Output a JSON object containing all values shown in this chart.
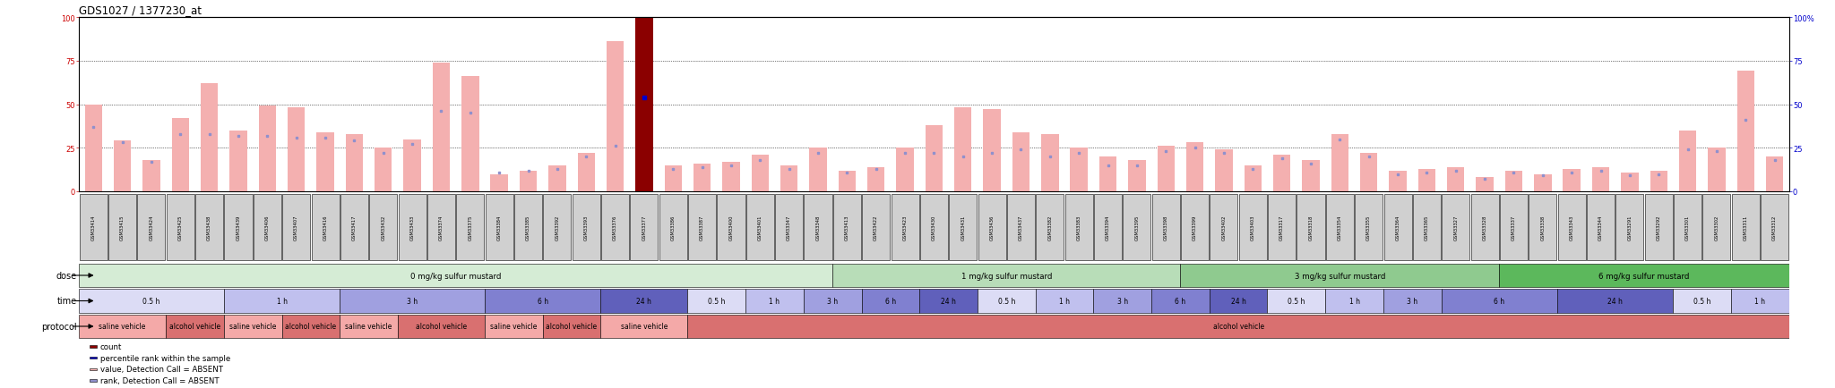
{
  "title": "GDS1027 / 1377230_at",
  "sample_ids": [
    "GSM33414",
    "GSM33415",
    "GSM33424",
    "GSM33425",
    "GSM33438",
    "GSM33439",
    "GSM33406",
    "GSM33407",
    "GSM33416",
    "GSM33417",
    "GSM33432",
    "GSM33433",
    "GSM33374",
    "GSM33375",
    "GSM33384",
    "GSM33385",
    "GSM33392",
    "GSM33393",
    "GSM33376",
    "GSM33377",
    "GSM33386",
    "GSM33387",
    "GSM33400",
    "GSM33401",
    "GSM33347",
    "GSM33348",
    "GSM33413",
    "GSM33422",
    "GSM33423",
    "GSM33430",
    "GSM33431",
    "GSM33436",
    "GSM33437",
    "GSM33382",
    "GSM33383",
    "GSM33394",
    "GSM33395",
    "GSM33398",
    "GSM33399",
    "GSM33402",
    "GSM33403",
    "GSM33317",
    "GSM33318",
    "GSM33354",
    "GSM33355",
    "GSM33364",
    "GSM33365",
    "GSM33327",
    "GSM33328",
    "GSM33337",
    "GSM33338",
    "GSM33343",
    "GSM33344",
    "GSM33291",
    "GSM33292",
    "GSM33301",
    "GSM33302",
    "GSM33311",
    "GSM33312"
  ],
  "bar_heights": [
    50,
    29,
    18,
    42,
    62,
    35,
    49,
    48,
    34,
    33,
    25,
    30,
    74,
    66,
    10,
    12,
    15,
    22,
    86,
    100,
    15,
    16,
    17,
    21,
    15,
    25,
    12,
    14,
    25,
    38,
    48,
    47,
    34,
    33,
    25,
    20,
    18,
    26,
    28,
    24,
    15,
    21,
    18,
    33,
    22,
    12,
    13,
    14,
    8,
    12,
    10,
    13,
    14,
    11,
    12,
    35,
    25,
    69,
    20
  ],
  "rank_heights": [
    37,
    28,
    17,
    33,
    33,
    32,
    32,
    31,
    31,
    29,
    22,
    27,
    46,
    45,
    11,
    12,
    13,
    20,
    26,
    54,
    13,
    14,
    15,
    18,
    13,
    22,
    11,
    13,
    22,
    22,
    20,
    22,
    24,
    20,
    22,
    15,
    15,
    23,
    25,
    22,
    13,
    19,
    16,
    30,
    20,
    10,
    11,
    12,
    7,
    11,
    9,
    11,
    12,
    9,
    10,
    24,
    23,
    41,
    18
  ],
  "special_indices": [
    19
  ],
  "dose_groups": [
    {
      "label": "0 mg/kg sulfur mustard",
      "start": 0,
      "end": 26,
      "color": "#d5ecd5"
    },
    {
      "label": "1 mg/kg sulfur mustard",
      "start": 26,
      "end": 38,
      "color": "#b8ddb8"
    },
    {
      "label": "3 mg/kg sulfur mustard",
      "start": 38,
      "end": 49,
      "color": "#8fca8f"
    },
    {
      "label": "6 mg/kg sulfur mustard",
      "start": 49,
      "end": 59,
      "color": "#5cb85c"
    }
  ],
  "time_groups": [
    {
      "label": "0.5 h",
      "start": 0,
      "end": 5,
      "shade": 0
    },
    {
      "label": "1 h",
      "start": 5,
      "end": 9,
      "shade": 1
    },
    {
      "label": "3 h",
      "start": 9,
      "end": 14,
      "shade": 2
    },
    {
      "label": "6 h",
      "start": 14,
      "end": 18,
      "shade": 3
    },
    {
      "label": "24 h",
      "start": 18,
      "end": 21,
      "shade": 4
    },
    {
      "label": "0.5 h",
      "start": 21,
      "end": 23,
      "shade": 0
    },
    {
      "label": "1 h",
      "start": 23,
      "end": 25,
      "shade": 1
    },
    {
      "label": "3 h",
      "start": 25,
      "end": 27,
      "shade": 2
    },
    {
      "label": "6 h",
      "start": 27,
      "end": 29,
      "shade": 3
    },
    {
      "label": "24 h",
      "start": 29,
      "end": 31,
      "shade": 4
    },
    {
      "label": "0.5 h",
      "start": 31,
      "end": 33,
      "shade": 0
    },
    {
      "label": "1 h",
      "start": 33,
      "end": 35,
      "shade": 1
    },
    {
      "label": "3 h",
      "start": 35,
      "end": 37,
      "shade": 2
    },
    {
      "label": "6 h",
      "start": 37,
      "end": 39,
      "shade": 3
    },
    {
      "label": "24 h",
      "start": 39,
      "end": 41,
      "shade": 4
    },
    {
      "label": "0.5 h",
      "start": 41,
      "end": 43,
      "shade": 0
    },
    {
      "label": "1 h",
      "start": 43,
      "end": 45,
      "shade": 1
    },
    {
      "label": "3 h",
      "start": 45,
      "end": 47,
      "shade": 2
    },
    {
      "label": "6 h",
      "start": 47,
      "end": 51,
      "shade": 3
    },
    {
      "label": "24 h",
      "start": 51,
      "end": 55,
      "shade": 4
    },
    {
      "label": "0.5 h",
      "start": 55,
      "end": 57,
      "shade": 0
    },
    {
      "label": "1 h",
      "start": 57,
      "end": 59,
      "shade": 1
    }
  ],
  "protocol_groups": [
    {
      "label": "saline vehicle",
      "start": 0,
      "end": 3,
      "color": "#f4a9a8"
    },
    {
      "label": "alcohol vehicle",
      "start": 3,
      "end": 5,
      "color": "#d97070"
    },
    {
      "label": "saline vehicle",
      "start": 5,
      "end": 7,
      "color": "#f4a9a8"
    },
    {
      "label": "alcohol vehicle",
      "start": 7,
      "end": 9,
      "color": "#d97070"
    },
    {
      "label": "saline vehicle",
      "start": 9,
      "end": 11,
      "color": "#f4a9a8"
    },
    {
      "label": "alcohol vehicle",
      "start": 11,
      "end": 14,
      "color": "#d97070"
    },
    {
      "label": "saline vehicle",
      "start": 14,
      "end": 16,
      "color": "#f4a9a8"
    },
    {
      "label": "alcohol vehicle",
      "start": 16,
      "end": 18,
      "color": "#d97070"
    },
    {
      "label": "saline vehicle",
      "start": 18,
      "end": 21,
      "color": "#f4a9a8"
    },
    {
      "label": "alcohol vehicle",
      "start": 21,
      "end": 59,
      "color": "#d97070"
    }
  ],
  "time_shades": [
    "#dcdcf5",
    "#c0c0ee",
    "#a0a0e0",
    "#8080d0",
    "#6060bb"
  ],
  "bar_color": "#f4b0b0",
  "rank_color": "#9090cc",
  "count_color": "#8b0000",
  "percentile_color": "#0000cc",
  "left_axis_color": "#cc0000",
  "right_axis_color": "#0000cc",
  "bg_color": "#ffffff",
  "legend_items": [
    {
      "label": "count",
      "color": "#8b0000"
    },
    {
      "label": "percentile rank within the sample",
      "color": "#0000cc"
    },
    {
      "label": "value, Detection Call = ABSENT",
      "color": "#f4b0b0"
    },
    {
      "label": "rank, Detection Call = ABSENT",
      "color": "#9090cc"
    }
  ],
  "yticks": [
    0,
    25,
    50,
    75,
    100
  ]
}
